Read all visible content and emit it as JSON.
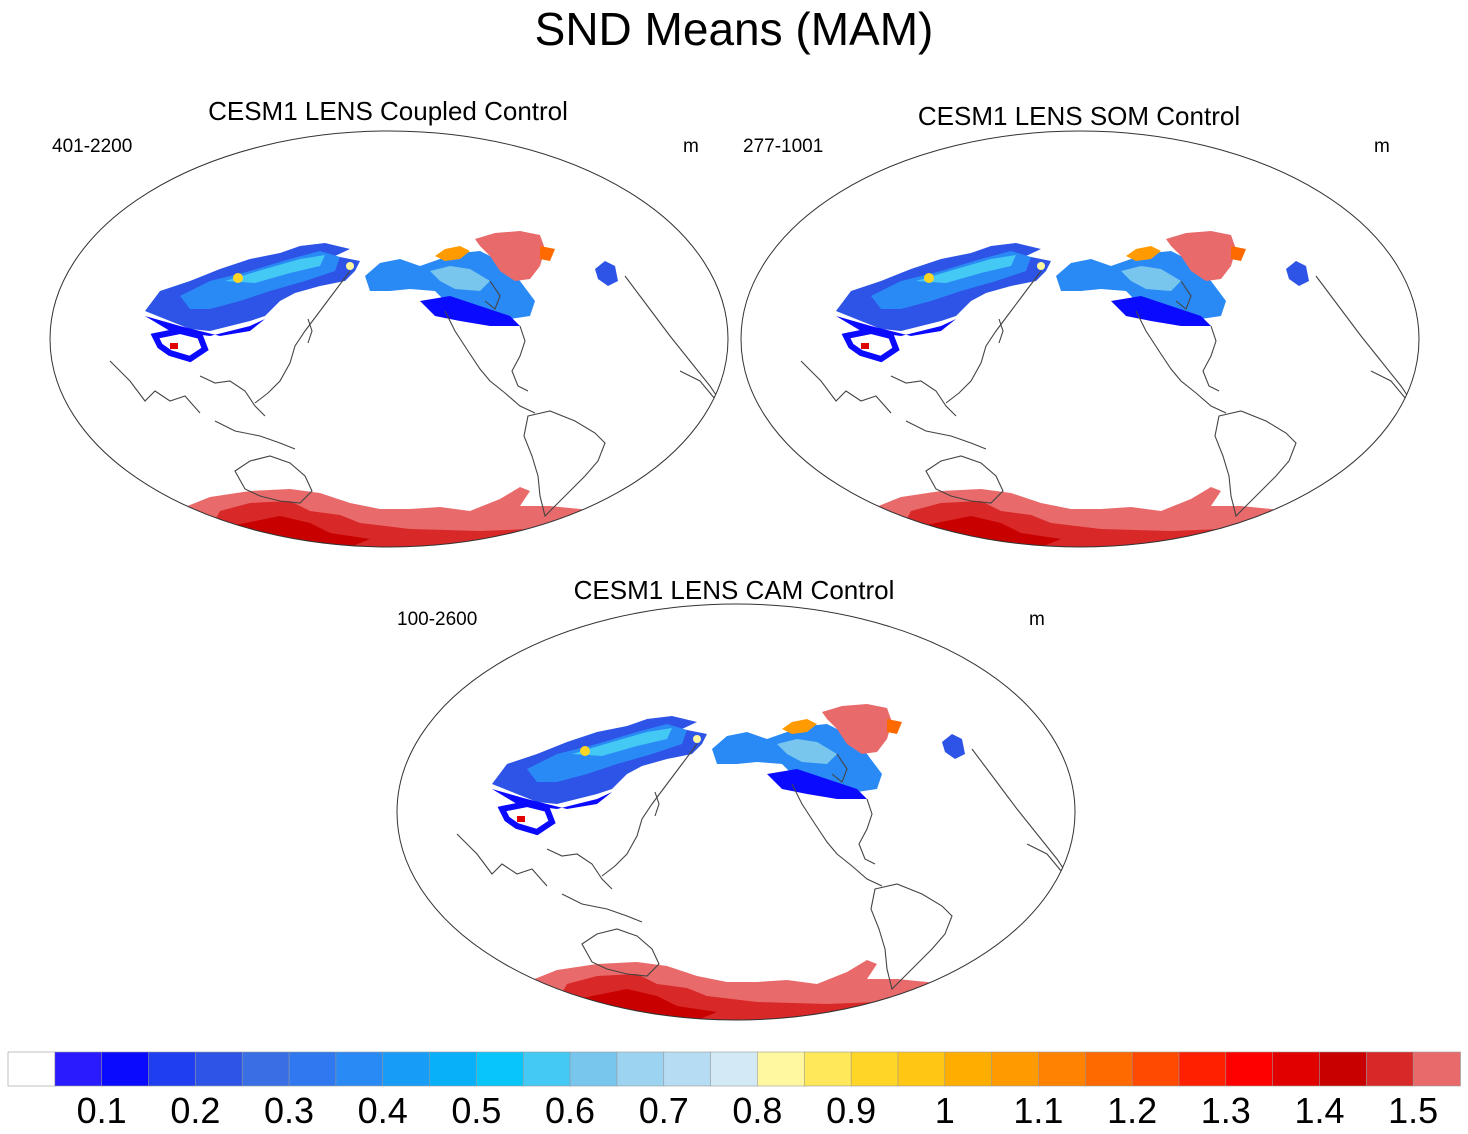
{
  "title": "SND Means (MAM)",
  "panels": [
    {
      "title": "CESM1 LENS Coupled Control",
      "years": "401-2200",
      "units": "m"
    },
    {
      "title": "CESM1 LENS SOM Control",
      "years": "277-1001",
      "units": "m"
    },
    {
      "title": "CESM1 LENS CAM Control",
      "years": "100-2600",
      "units": "m"
    }
  ],
  "colorbar": {
    "colors": [
      "#ffffff",
      "#2a1bff",
      "#0a0aff",
      "#1e3ef0",
      "#2d54e6",
      "#3a6ee4",
      "#2f78ef",
      "#2a8af5",
      "#179cf8",
      "#08b0fa",
      "#08c6fa",
      "#44c8f4",
      "#78c6ee",
      "#9cd3f0",
      "#b5dcf2",
      "#d3eaf6",
      "#fff8a0",
      "#ffe85a",
      "#ffd526",
      "#ffc614",
      "#ffae00",
      "#ff9a00",
      "#ff8300",
      "#ff6a00",
      "#ff4a00",
      "#ff2000",
      "#ff0000",
      "#e10000",
      "#c80000",
      "#d82828",
      "#e86a6a"
    ],
    "labels": [
      "0.1",
      "0.2",
      "0.3",
      "0.4",
      "0.5",
      "0.6",
      "0.7",
      "0.8",
      "0.9",
      "1",
      "1.1",
      "1.2",
      "1.3",
      "1.4",
      "1.5"
    ]
  }
}
